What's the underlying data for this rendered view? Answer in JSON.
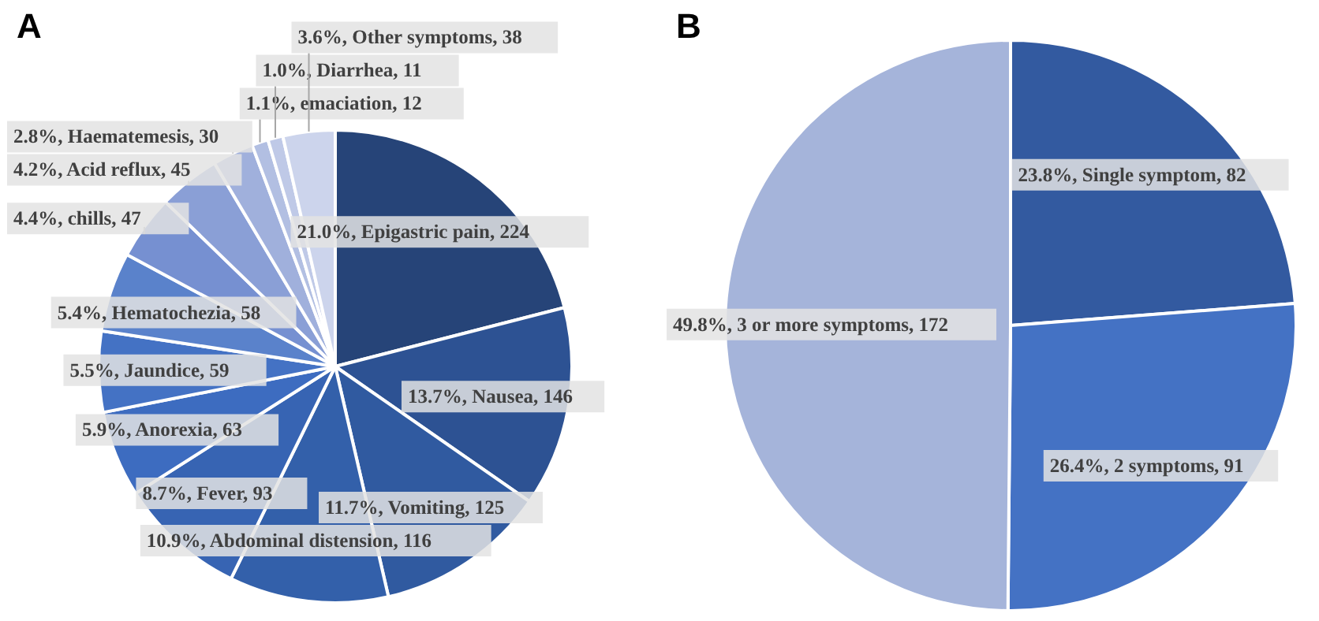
{
  "chart_data": [
    {
      "type": "pie",
      "title": "A",
      "values": [
        224,
        146,
        125,
        116,
        93,
        63,
        59,
        58,
        47,
        45,
        30,
        12,
        11,
        38
      ],
      "value_labels": [
        "21.0%, Epigastric pain, 224",
        "13.7%, Nausea, 146",
        "11.7%, Vomiting, 125",
        "10.9%, Abdominal distension, 116",
        "8.7%, Fever, 93",
        "5.9%, Anorexia, 63",
        "5.5%, Jaundice, 59",
        "5.4%, Hematochezia, 58",
        "4.4%, chills, 47",
        "4.2%, Acid reflux, 45",
        "2.8%, Haematemesis, 30",
        "1.1%, emaciation, 12",
        "1.0%, Diarrhea, 11",
        "3.6%, Other symptoms, 38"
      ],
      "colors": [
        "#264478",
        "#2d5293",
        "#305aa0",
        "#3360aa",
        "#3764b3",
        "#3d6cc0",
        "#4472c4",
        "#5a82cb",
        "#7690d1",
        "#8a9fd6",
        "#a0b0dc",
        "#b2bfe2",
        "#bfc9e7",
        "#ccd4ec"
      ]
    },
    {
      "type": "pie",
      "title": "B",
      "values": [
        82,
        91,
        172
      ],
      "value_labels": [
        "23.8%, Single symptom, 82",
        "26.4%, 2 symptoms, 91",
        "49.8%, 3 or more symptoms, 172"
      ],
      "colors": [
        "#335aa0",
        "#4472c4",
        "#a5b4da"
      ]
    }
  ]
}
